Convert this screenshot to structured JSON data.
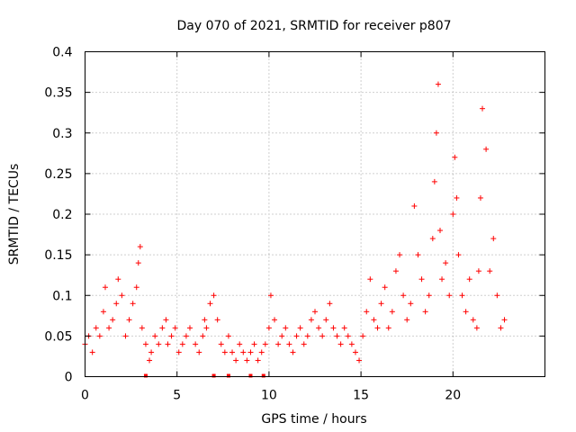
{
  "chart_data": {
    "type": "scatter",
    "title": "Day 070 of 2021, SRMTID for receiver p807",
    "xlabel": "GPS time / hours",
    "ylabel": "SRMTID / TECUs",
    "xlim": [
      0,
      25
    ],
    "ylim": [
      0,
      0.4
    ],
    "x_ticks": [
      0,
      5,
      10,
      15,
      20
    ],
    "x_tick_labels": [
      "0",
      "5",
      "10",
      "15",
      "20"
    ],
    "y_ticks": [
      0,
      0.05,
      0.1,
      0.15,
      0.2,
      0.25,
      0.3,
      0.35,
      0.4
    ],
    "y_tick_labels": [
      "0",
      "0.05",
      "0.1",
      "0.15",
      "0.2",
      "0.25",
      "0.3",
      "0.35",
      "0.4"
    ],
    "grid": true,
    "marker": "plus",
    "color": "#ff0000",
    "baseline_markers_x": [
      3.3,
      7.0,
      7.8,
      9.0,
      9.7
    ],
    "series": [
      {
        "name": "SRMTID",
        "x": [
          0.0,
          0.2,
          0.4,
          0.6,
          0.8,
          1.0,
          1.1,
          1.3,
          1.5,
          1.7,
          1.8,
          2.0,
          2.2,
          2.4,
          2.6,
          2.8,
          2.9,
          3.0,
          3.1,
          3.3,
          3.5,
          3.6,
          3.8,
          4.0,
          4.2,
          4.4,
          4.5,
          4.7,
          4.9,
          5.1,
          5.3,
          5.5,
          5.7,
          6.0,
          6.2,
          6.4,
          6.5,
          6.6,
          6.8,
          7.0,
          7.2,
          7.4,
          7.6,
          7.8,
          8.0,
          8.2,
          8.4,
          8.6,
          8.8,
          9.0,
          9.2,
          9.4,
          9.6,
          9.8,
          10.0,
          10.1,
          10.3,
          10.5,
          10.7,
          10.9,
          11.1,
          11.3,
          11.5,
          11.7,
          11.9,
          12.1,
          12.3,
          12.5,
          12.7,
          12.9,
          13.1,
          13.3,
          13.5,
          13.7,
          13.9,
          14.1,
          14.3,
          14.5,
          14.7,
          14.9,
          15.1,
          15.3,
          15.5,
          15.7,
          15.9,
          16.1,
          16.3,
          16.5,
          16.7,
          16.9,
          17.1,
          17.3,
          17.5,
          17.7,
          17.9,
          18.1,
          18.3,
          18.5,
          18.7,
          18.9,
          19.0,
          19.1,
          19.2,
          19.3,
          19.4,
          19.6,
          19.8,
          20.0,
          20.1,
          20.2,
          20.3,
          20.5,
          20.7,
          20.9,
          21.1,
          21.3,
          21.4,
          21.5,
          21.6,
          21.8,
          22.0,
          22.2,
          22.4,
          22.6,
          22.8
        ],
        "y": [
          0.04,
          0.05,
          0.03,
          0.06,
          0.05,
          0.08,
          0.11,
          0.06,
          0.07,
          0.09,
          0.12,
          0.1,
          0.05,
          0.07,
          0.09,
          0.11,
          0.14,
          0.16,
          0.06,
          0.04,
          0.02,
          0.03,
          0.05,
          0.04,
          0.06,
          0.07,
          0.04,
          0.05,
          0.06,
          0.03,
          0.04,
          0.05,
          0.06,
          0.04,
          0.03,
          0.05,
          0.07,
          0.06,
          0.09,
          0.1,
          0.07,
          0.04,
          0.03,
          0.05,
          0.03,
          0.02,
          0.04,
          0.03,
          0.02,
          0.03,
          0.04,
          0.02,
          0.03,
          0.04,
          0.06,
          0.1,
          0.07,
          0.04,
          0.05,
          0.06,
          0.04,
          0.03,
          0.05,
          0.06,
          0.04,
          0.05,
          0.07,
          0.08,
          0.06,
          0.05,
          0.07,
          0.09,
          0.06,
          0.05,
          0.04,
          0.06,
          0.05,
          0.04,
          0.03,
          0.02,
          0.05,
          0.08,
          0.12,
          0.07,
          0.06,
          0.09,
          0.11,
          0.06,
          0.08,
          0.13,
          0.15,
          0.1,
          0.07,
          0.09,
          0.21,
          0.15,
          0.12,
          0.08,
          0.1,
          0.17,
          0.24,
          0.3,
          0.36,
          0.18,
          0.12,
          0.14,
          0.1,
          0.2,
          0.27,
          0.22,
          0.15,
          0.1,
          0.08,
          0.12,
          0.07,
          0.06,
          0.13,
          0.22,
          0.33,
          0.28,
          0.13,
          0.17,
          0.1,
          0.06,
          0.07
        ]
      }
    ]
  }
}
